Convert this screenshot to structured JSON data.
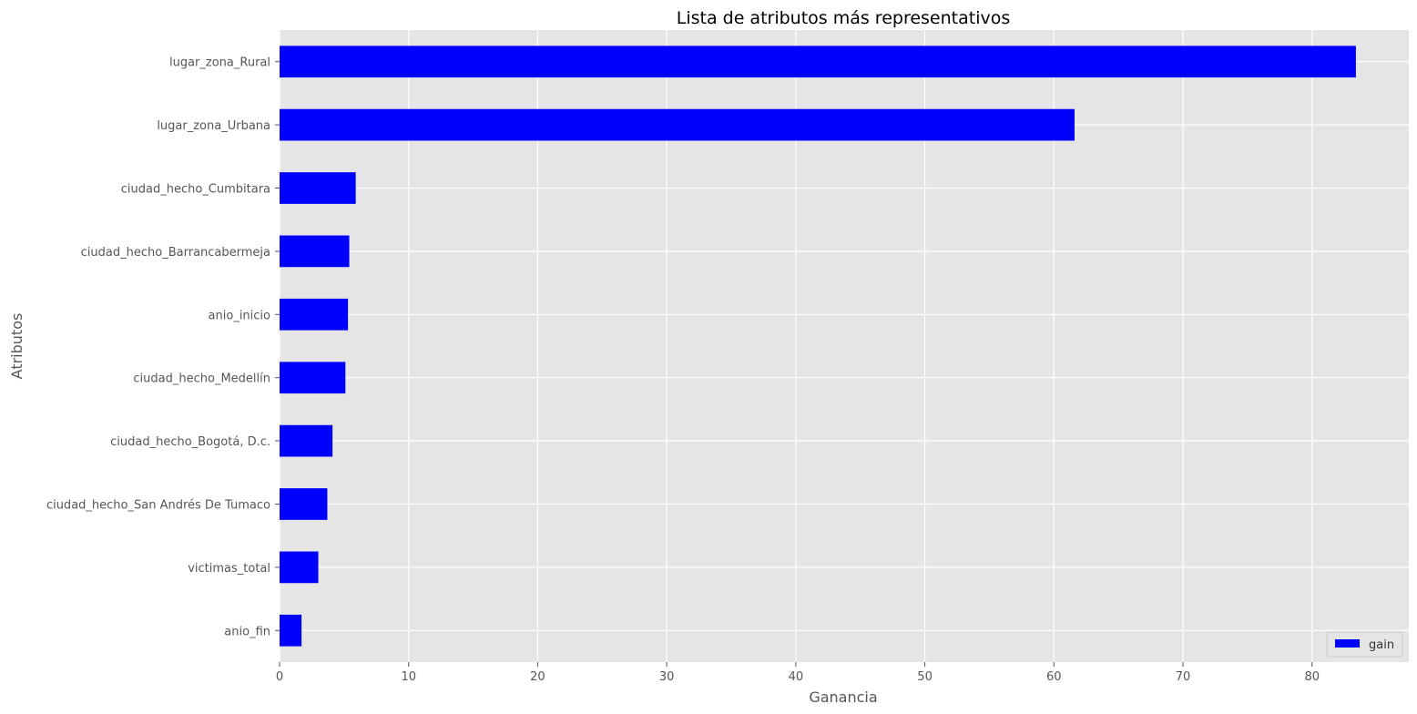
{
  "chart_data": {
    "type": "bar",
    "orientation": "horizontal",
    "title": "Lista de atributos más representativos",
    "xlabel": "Ganancia",
    "ylabel": "Atributos",
    "xlim": [
      0,
      87.5
    ],
    "xticks": [
      0,
      10,
      20,
      30,
      40,
      50,
      60,
      70,
      80
    ],
    "grid": true,
    "legend_position": "lower-right",
    "categories": [
      "lugar_zona_Rural",
      "lugar_zona_Urbana",
      "ciudad_hecho_Cumbitara",
      "ciudad_hecho_Barrancabermeja",
      "anio_inicio",
      "ciudad_hecho_Medellín",
      "ciudad_hecho_Bogotá, D.c.",
      "ciudad_hecho_San Andrés De Tumaco",
      "victimas_total",
      "anio_fin"
    ],
    "series": [
      {
        "name": "gain",
        "color": "#0000ff",
        "values": [
          83.4,
          61.6,
          5.9,
          5.4,
          5.3,
          5.1,
          4.1,
          3.7,
          3.0,
          1.7
        ]
      }
    ]
  }
}
